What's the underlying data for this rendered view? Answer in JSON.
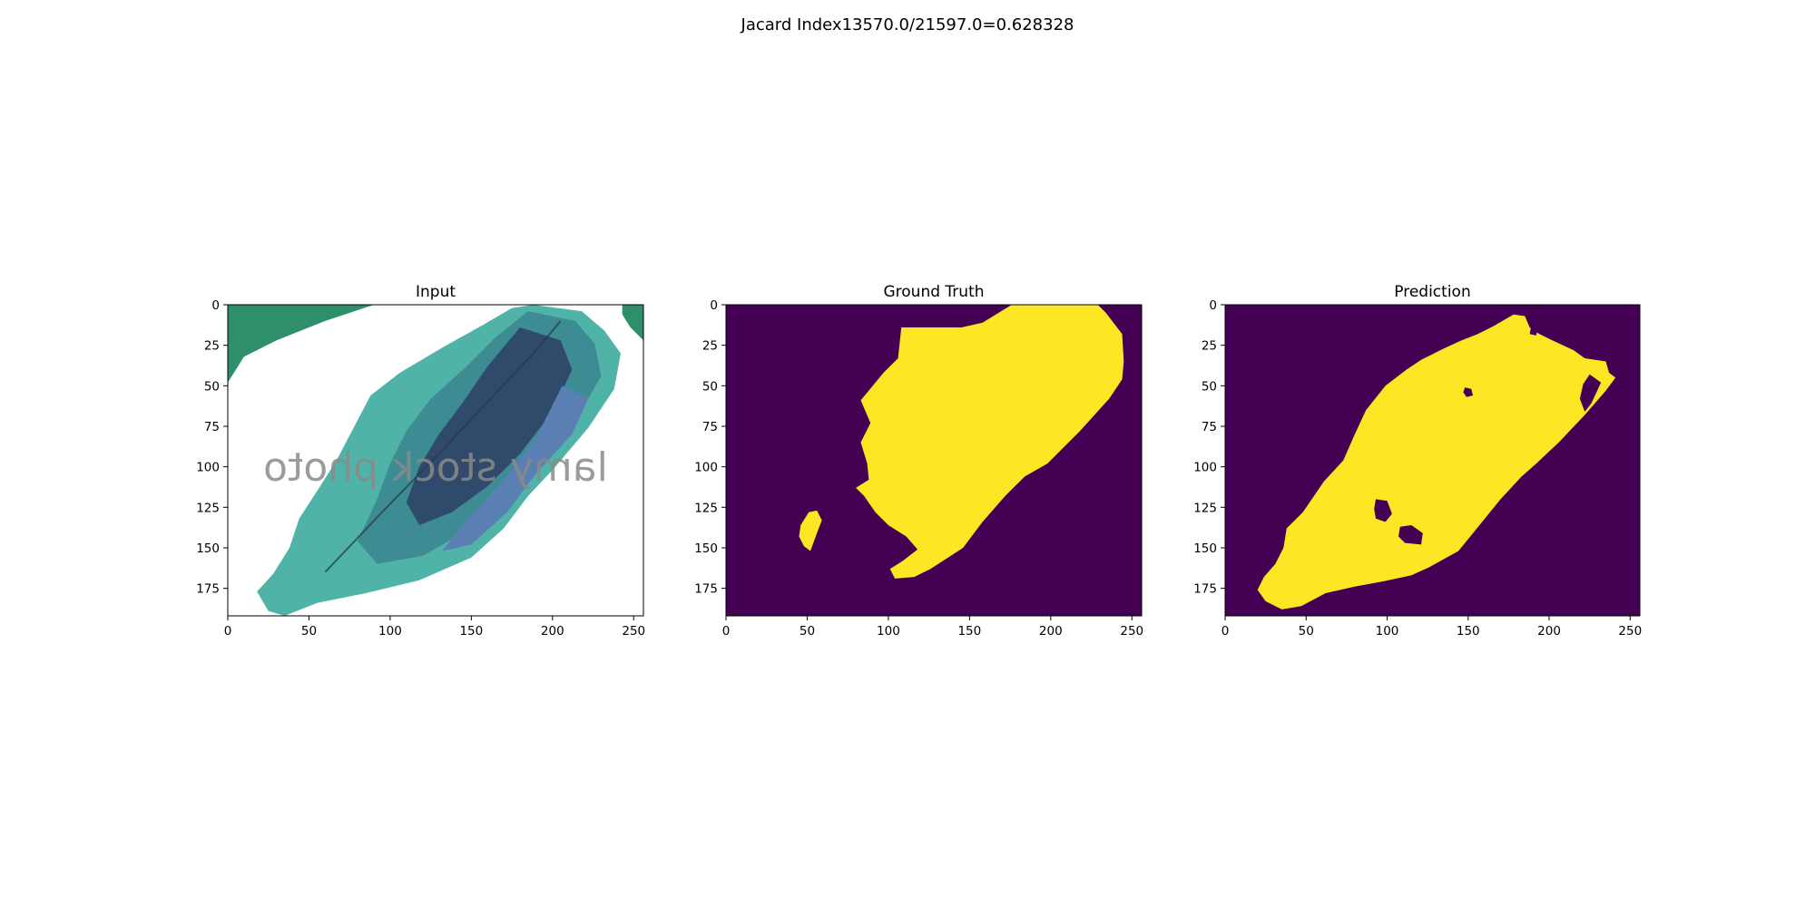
{
  "figure": {
    "suptitle": "Jacard Index13570.0/21597.0=0.628328"
  },
  "chart_data": [
    {
      "type": "image",
      "title": "Input",
      "image_extent": {
        "width": 256,
        "height": 192
      },
      "xlim": [
        0,
        256
      ],
      "ylim": [
        192,
        0
      ],
      "xticks": [
        0,
        50,
        100,
        150,
        200,
        250
      ],
      "yticks": [
        0,
        25,
        50,
        75,
        100,
        125,
        150,
        175
      ],
      "watermark": "lamy stock photo",
      "colors": {
        "leaf_light": "#4fb3a8",
        "leaf_mid": "#3d8c93",
        "leaf_dark": "#2f4a6a",
        "leaf_blue": "#5a7fb3",
        "corner_leaf": "#2e8f6a",
        "background": "#ffffff"
      }
    },
    {
      "type": "heatmap",
      "title": "Ground Truth",
      "image_extent": {
        "width": 256,
        "height": 192
      },
      "xlim": [
        0,
        256
      ],
      "ylim": [
        192,
        0
      ],
      "xticks": [
        0,
        50,
        100,
        150,
        200,
        250
      ],
      "yticks": [
        0,
        25,
        50,
        75,
        100,
        125,
        150,
        175
      ],
      "colors": {
        "background": "#440154",
        "mask": "#fde725"
      },
      "mask_polygons": [
        [
          [
            176,
            0
          ],
          [
            229,
            0
          ],
          [
            234,
            5
          ],
          [
            244,
            18
          ],
          [
            245,
            35
          ],
          [
            244,
            46
          ],
          [
            236,
            58
          ],
          [
            218,
            78
          ],
          [
            198,
            98
          ],
          [
            184,
            106
          ],
          [
            172,
            118
          ],
          [
            158,
            134
          ],
          [
            146,
            150
          ],
          [
            126,
            163
          ],
          [
            116,
            168
          ],
          [
            104,
            169
          ],
          [
            101,
            163
          ],
          [
            109,
            158
          ],
          [
            118,
            151
          ],
          [
            111,
            143
          ],
          [
            100,
            136
          ],
          [
            92,
            128
          ],
          [
            85,
            118
          ],
          [
            80,
            113
          ],
          [
            88,
            108
          ],
          [
            87,
            98
          ],
          [
            83,
            85
          ],
          [
            89,
            73
          ],
          [
            83,
            59
          ],
          [
            97,
            42
          ],
          [
            106,
            33
          ],
          [
            108,
            14
          ],
          [
            145,
            14
          ],
          [
            158,
            11
          ]
        ],
        [
          [
            51,
            128
          ],
          [
            56,
            127
          ],
          [
            59,
            133
          ],
          [
            56,
            141
          ],
          [
            52,
            152
          ],
          [
            48,
            149
          ],
          [
            45,
            143
          ],
          [
            46,
            136
          ]
        ]
      ]
    },
    {
      "type": "heatmap",
      "title": "Prediction",
      "image_extent": {
        "width": 256,
        "height": 192
      },
      "xlim": [
        0,
        256
      ],
      "ylim": [
        192,
        0
      ],
      "xticks": [
        0,
        50,
        100,
        150,
        200,
        250
      ],
      "yticks": [
        0,
        25,
        50,
        75,
        100,
        125,
        150,
        175
      ],
      "colors": {
        "background": "#440154",
        "mask": "#fde725"
      },
      "mask_polygons": [
        [
          [
            178,
            6
          ],
          [
            185,
            7
          ],
          [
            188,
            14
          ],
          [
            194,
            18
          ],
          [
            202,
            22
          ],
          [
            215,
            28
          ],
          [
            222,
            33
          ],
          [
            235,
            35
          ],
          [
            237,
            42
          ],
          [
            241,
            45
          ],
          [
            235,
            53
          ],
          [
            222,
            68
          ],
          [
            206,
            85
          ],
          [
            192,
            98
          ],
          [
            183,
            106
          ],
          [
            170,
            120
          ],
          [
            157,
            136
          ],
          [
            144,
            152
          ],
          [
            126,
            162
          ],
          [
            115,
            167
          ],
          [
            96,
            171
          ],
          [
            80,
            174
          ],
          [
            62,
            178
          ],
          [
            47,
            186
          ],
          [
            35,
            188
          ],
          [
            25,
            183
          ],
          [
            20,
            176
          ],
          [
            24,
            168
          ],
          [
            31,
            160
          ],
          [
            36,
            150
          ],
          [
            38,
            138
          ],
          [
            48,
            128
          ],
          [
            61,
            109
          ],
          [
            73,
            96
          ],
          [
            80,
            80
          ],
          [
            87,
            65
          ],
          [
            99,
            50
          ],
          [
            112,
            40
          ],
          [
            121,
            34
          ],
          [
            135,
            27
          ],
          [
            146,
            22
          ],
          [
            156,
            18
          ],
          [
            166,
            13
          ]
        ]
      ],
      "hole_polygons": [
        [
          [
            93,
            120
          ],
          [
            100,
            121
          ],
          [
            103,
            129
          ],
          [
            99,
            134
          ],
          [
            93,
            132
          ],
          [
            92,
            126
          ]
        ],
        [
          [
            108,
            137
          ],
          [
            115,
            136
          ],
          [
            122,
            141
          ],
          [
            121,
            148
          ],
          [
            111,
            147
          ],
          [
            107,
            143
          ]
        ],
        [
          [
            148,
            51
          ],
          [
            152,
            52
          ],
          [
            153,
            56
          ],
          [
            149,
            57
          ],
          [
            147,
            54
          ]
        ],
        [
          [
            225,
            43
          ],
          [
            232,
            48
          ],
          [
            226,
            61
          ],
          [
            222,
            66
          ],
          [
            219,
            58
          ],
          [
            221,
            49
          ]
        ],
        [
          [
            189,
            13
          ],
          [
            193,
            15
          ],
          [
            192,
            19
          ],
          [
            188,
            18
          ]
        ]
      ]
    }
  ]
}
